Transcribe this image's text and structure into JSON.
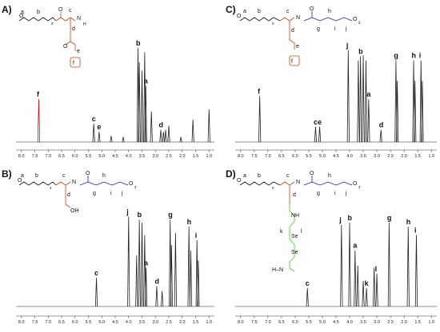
{
  "chart_data": [
    {
      "type": "line",
      "panel": "A)",
      "xlim": [
        8.2,
        0.8
      ],
      "x_ticks": [
        "8.0",
        "7.5",
        "7.0",
        "6.5",
        "6.0",
        "5.5",
        "5.0",
        "4.5",
        "4.0",
        "3.5",
        "3.0",
        "2.5",
        "2.0",
        "1.5",
        "1.0"
      ],
      "structure": {
        "pendant": "NH2",
        "labels": [
          "a",
          "b",
          "x",
          "c",
          "d",
          "e",
          "f"
        ]
      },
      "peaks": [
        {
          "ppm": 7.35,
          "height": 0.42,
          "label": "f",
          "color": "#c01010"
        },
        {
          "ppm": 5.3,
          "height": 0.18,
          "label": "c"
        },
        {
          "ppm": 5.1,
          "height": 0.1,
          "label": "e"
        },
        {
          "ppm": 4.65,
          "height": 0.06
        },
        {
          "ppm": 4.2,
          "height": 0.05
        },
        {
          "ppm": 3.65,
          "height": 0.92,
          "label": "b"
        },
        {
          "ppm": 3.6,
          "height": 0.78
        },
        {
          "ppm": 3.5,
          "height": 0.7
        },
        {
          "ppm": 3.4,
          "height": 0.88
        },
        {
          "ppm": 3.36,
          "height": 0.55,
          "label": "a"
        },
        {
          "ppm": 3.15,
          "height": 0.3
        },
        {
          "ppm": 2.8,
          "height": 0.12,
          "label": "d"
        },
        {
          "ppm": 2.7,
          "height": 0.1
        },
        {
          "ppm": 2.62,
          "height": 0.12
        },
        {
          "ppm": 2.5,
          "height": 0.16
        },
        {
          "ppm": 2.05,
          "height": 0.05
        },
        {
          "ppm": 1.6,
          "height": 0.22
        },
        {
          "ppm": 1.0,
          "height": 0.32
        }
      ]
    },
    {
      "type": "line",
      "panel": "C)",
      "xlim": [
        8.2,
        0.8
      ],
      "x_ticks": [
        "8.0",
        "7.5",
        "7.0",
        "6.5",
        "6.0",
        "5.5",
        "5.0",
        "4.5",
        "4.0",
        "3.5",
        "3.0",
        "2.5",
        "2.0",
        "1.5",
        "1.0"
      ],
      "structure": {
        "repeat": "z",
        "labels": [
          "a",
          "b",
          "x",
          "c",
          "d",
          "e",
          "f",
          "g",
          "h",
          "i",
          "j"
        ]
      },
      "peaks": [
        {
          "ppm": 7.3,
          "height": 0.45,
          "label": "f"
        },
        {
          "ppm": 5.25,
          "height": 0.15,
          "label": "c"
        },
        {
          "ppm": 5.1,
          "height": 0.15,
          "label": "e"
        },
        {
          "ppm": 4.05,
          "height": 0.9,
          "label": "j"
        },
        {
          "ppm": 3.68,
          "height": 0.8
        },
        {
          "ppm": 3.6,
          "height": 0.84,
          "label": "b"
        },
        {
          "ppm": 3.5,
          "height": 0.85
        },
        {
          "ppm": 3.4,
          "height": 0.8
        },
        {
          "ppm": 3.3,
          "height": 0.42,
          "label": "a"
        },
        {
          "ppm": 2.85,
          "height": 0.12,
          "label": "d"
        },
        {
          "ppm": 2.3,
          "height": 0.8,
          "label": "g"
        },
        {
          "ppm": 2.25,
          "height": 0.6
        },
        {
          "ppm": 1.65,
          "height": 0.8,
          "label": "h"
        },
        {
          "ppm": 1.6,
          "height": 0.6
        },
        {
          "ppm": 1.38,
          "height": 0.8,
          "label": "i"
        },
        {
          "ppm": 1.33,
          "height": 0.6
        }
      ]
    },
    {
      "type": "line",
      "panel": "B)",
      "xlim": [
        8.2,
        0.8
      ],
      "x_ticks": [
        "8.0",
        "7.5",
        "7.0",
        "6.5",
        "6.0",
        "5.5",
        "5.0",
        "4.5",
        "4.0",
        "3.5",
        "3.0",
        "2.5",
        "2.0",
        "1.5",
        "1.0"
      ],
      "structure": {
        "pendant": "OH",
        "repeat": "z",
        "labels": [
          "a",
          "b",
          "x",
          "c",
          "d",
          "g",
          "h",
          "i",
          "j"
        ]
      },
      "peaks": [
        {
          "ppm": 5.2,
          "height": 0.28,
          "label": "c"
        },
        {
          "ppm": 4.0,
          "height": 0.88,
          "label": "j"
        },
        {
          "ppm": 3.7,
          "height": 0.5
        },
        {
          "ppm": 3.6,
          "height": 0.85,
          "label": "b"
        },
        {
          "ppm": 3.5,
          "height": 0.82
        },
        {
          "ppm": 3.4,
          "height": 0.7
        },
        {
          "ppm": 3.35,
          "height": 0.38,
          "label": "a"
        },
        {
          "ppm": 2.95,
          "height": 0.2,
          "label": "d"
        },
        {
          "ppm": 2.75,
          "height": 0.15
        },
        {
          "ppm": 2.45,
          "height": 0.85,
          "label": "g"
        },
        {
          "ppm": 2.4,
          "height": 0.6
        },
        {
          "ppm": 2.25,
          "height": 0.72
        },
        {
          "ppm": 1.75,
          "height": 0.78,
          "label": "h"
        },
        {
          "ppm": 1.68,
          "height": 0.55
        },
        {
          "ppm": 1.45,
          "height": 0.65,
          "label": "i"
        },
        {
          "ppm": 1.4,
          "height": 0.45
        }
      ]
    },
    {
      "type": "line",
      "panel": "D)",
      "xlim": [
        8.2,
        0.8
      ],
      "x_ticks": [
        "8.0",
        "7.5",
        "7.0",
        "6.5",
        "6.0",
        "5.5",
        "5.0",
        "4.5",
        "4.0",
        "3.5",
        "3.0",
        "2.5",
        "2.0",
        "1.5",
        "1.0"
      ],
      "structure": {
        "pendant": "NH-Se-Se-NH2",
        "repeat": "z",
        "labels": [
          "a",
          "b",
          "x",
          "c",
          "d",
          "g",
          "h",
          "i",
          "j",
          "k",
          "l"
        ]
      },
      "peaks": [
        {
          "ppm": 5.55,
          "height": 0.18,
          "label": "c"
        },
        {
          "ppm": 4.3,
          "height": 0.8,
          "label": "j"
        },
        {
          "ppm": 4.0,
          "height": 0.82,
          "label": "b"
        },
        {
          "ppm": 3.8,
          "height": 0.55,
          "label": "a"
        },
        {
          "ppm": 3.7,
          "height": 0.4
        },
        {
          "ppm": 3.5,
          "height": 0.25
        },
        {
          "ppm": 3.38,
          "height": 0.18,
          "label": "k"
        },
        {
          "ppm": 3.1,
          "height": 0.38
        },
        {
          "ppm": 3.0,
          "height": 0.32,
          "label": "l"
        },
        {
          "ppm": 2.55,
          "height": 0.82,
          "label": "g"
        },
        {
          "ppm": 1.85,
          "height": 0.78,
          "label": "h"
        },
        {
          "ppm": 1.55,
          "height": 0.7,
          "label": "i"
        }
      ]
    }
  ],
  "colors": {
    "trace": "#222222",
    "ester": "#d04010",
    "amide": "#1a1ac8",
    "diselenide": "#44cc22",
    "black": "#111111"
  }
}
